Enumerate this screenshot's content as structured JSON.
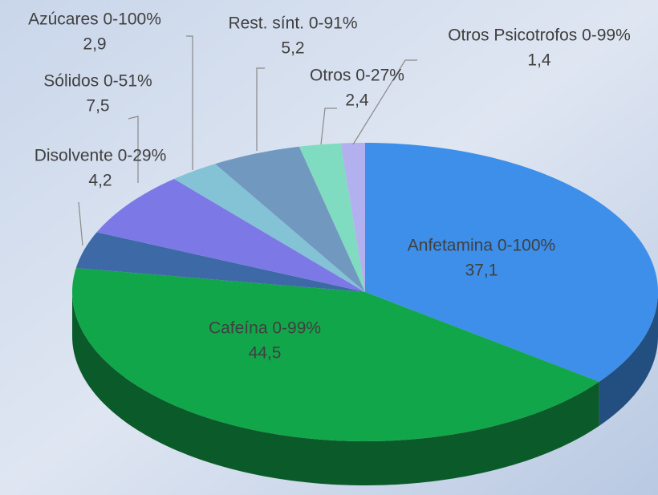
{
  "chart_data": {
    "type": "pie",
    "categories": [
      "Anfetamina 0-100%",
      "Cafeína 0-99%",
      "Disolvente 0-29%",
      "Sólidos 0-51%",
      "Azúcares 0-100%",
      "Rest. sínt. 0-91%",
      "Otros 0-27%",
      "Otros Psicotrofos 0-99%"
    ],
    "values": [
      37.1,
      44.5,
      4.2,
      7.5,
      2.9,
      5.2,
      2.4,
      1.4
    ],
    "value_labels": [
      "37,1",
      "44,5",
      "4,2",
      "7,5",
      "2,9",
      "5,2",
      "2,4",
      "1,4"
    ],
    "colors": [
      "#3d8fe9",
      "#12a64a",
      "#3d6aa6",
      "#7c79e6",
      "#84c2d6",
      "#7199c0",
      "#80dcc0",
      "#b3b0f0"
    ]
  }
}
